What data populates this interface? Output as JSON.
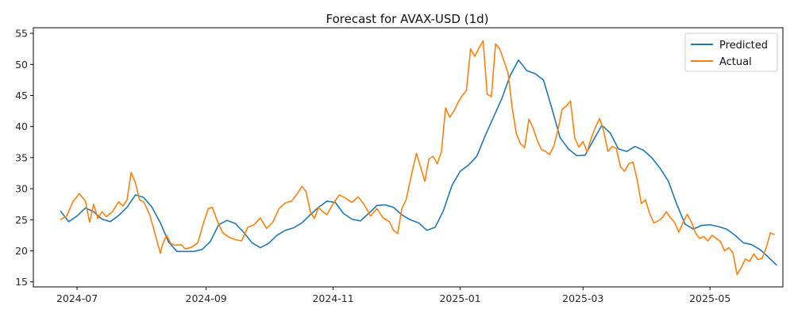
{
  "chart_data": {
    "type": "line",
    "title": "Forecast for AVAX-USD (1d)",
    "xlabel": "",
    "ylabel": "",
    "xlim": [
      "2024-06-10",
      "2025-06-05"
    ],
    "ylim": [
      14.2,
      55.9
    ],
    "grid": false,
    "legend_position": "top-right",
    "x_ticks": [
      {
        "date": "2024-07-01",
        "label": "2024-07"
      },
      {
        "date": "2024-09-01",
        "label": "2024-09"
      },
      {
        "date": "2024-11-01",
        "label": "2024-11"
      },
      {
        "date": "2025-01-01",
        "label": "2025-01"
      },
      {
        "date": "2025-03-01",
        "label": "2025-03"
      },
      {
        "date": "2025-05-01",
        "label": "2025-05"
      }
    ],
    "y_ticks": [
      15,
      20,
      25,
      30,
      35,
      40,
      45,
      50,
      55
    ],
    "series": [
      {
        "name": "Predicted",
        "color": "#1f77b4",
        "points": [
          [
            "2024-06-23",
            26.4
          ],
          [
            "2024-06-27",
            24.7
          ],
          [
            "2024-07-01",
            25.6
          ],
          [
            "2024-07-05",
            26.9
          ],
          [
            "2024-07-09",
            26.3
          ],
          [
            "2024-07-13",
            25.1
          ],
          [
            "2024-07-17",
            24.7
          ],
          [
            "2024-07-21",
            25.7
          ],
          [
            "2024-07-25",
            27.0
          ],
          [
            "2024-07-29",
            29.0
          ],
          [
            "2024-08-02",
            28.6
          ],
          [
            "2024-08-06",
            27.0
          ],
          [
            "2024-08-10",
            24.5
          ],
          [
            "2024-08-14",
            21.4
          ],
          [
            "2024-08-18",
            19.9
          ],
          [
            "2024-08-22",
            19.9
          ],
          [
            "2024-08-26",
            19.9
          ],
          [
            "2024-08-30",
            20.2
          ],
          [
            "2024-09-03",
            21.5
          ],
          [
            "2024-09-07",
            24.2
          ],
          [
            "2024-09-11",
            24.9
          ],
          [
            "2024-09-15",
            24.4
          ],
          [
            "2024-09-19",
            23.0
          ],
          [
            "2024-09-23",
            21.3
          ],
          [
            "2024-09-27",
            20.5
          ],
          [
            "2024-10-01",
            21.2
          ],
          [
            "2024-10-05",
            22.5
          ],
          [
            "2024-10-09",
            23.3
          ],
          [
            "2024-10-13",
            23.7
          ],
          [
            "2024-10-17",
            24.5
          ],
          [
            "2024-10-21",
            25.8
          ],
          [
            "2024-10-25",
            27.0
          ],
          [
            "2024-10-29",
            28.0
          ],
          [
            "2024-11-02",
            27.8
          ],
          [
            "2024-11-06",
            26.0
          ],
          [
            "2024-11-10",
            25.1
          ],
          [
            "2024-11-14",
            24.8
          ],
          [
            "2024-11-18",
            26.0
          ],
          [
            "2024-11-22",
            27.3
          ],
          [
            "2024-11-26",
            27.4
          ],
          [
            "2024-11-30",
            27.0
          ],
          [
            "2024-12-04",
            25.8
          ],
          [
            "2024-12-08",
            25.0
          ],
          [
            "2024-12-12",
            24.5
          ],
          [
            "2024-12-16",
            23.3
          ],
          [
            "2024-12-20",
            23.8
          ],
          [
            "2024-12-24",
            26.5
          ],
          [
            "2024-12-28",
            30.5
          ],
          [
            "2025-01-01",
            32.8
          ],
          [
            "2025-01-05",
            33.8
          ],
          [
            "2025-01-09",
            35.2
          ],
          [
            "2025-01-13",
            38.5
          ],
          [
            "2025-01-17",
            41.5
          ],
          [
            "2025-01-21",
            44.5
          ],
          [
            "2025-01-25",
            48.2
          ],
          [
            "2025-01-29",
            50.7
          ],
          [
            "2025-02-02",
            49.0
          ],
          [
            "2025-02-06",
            48.5
          ],
          [
            "2025-02-10",
            47.5
          ],
          [
            "2025-02-14",
            43.0
          ],
          [
            "2025-02-18",
            38.2
          ],
          [
            "2025-02-22",
            36.4
          ],
          [
            "2025-02-26",
            35.3
          ],
          [
            "2025-03-02",
            35.4
          ],
          [
            "2025-03-06",
            37.8
          ],
          [
            "2025-03-10",
            40.2
          ],
          [
            "2025-03-14",
            39.0
          ],
          [
            "2025-03-18",
            36.4
          ],
          [
            "2025-03-22",
            36.0
          ],
          [
            "2025-03-26",
            36.8
          ],
          [
            "2025-03-30",
            36.2
          ],
          [
            "2025-04-03",
            35.0
          ],
          [
            "2025-04-07",
            33.3
          ],
          [
            "2025-04-11",
            31.2
          ],
          [
            "2025-04-15",
            27.5
          ],
          [
            "2025-04-19",
            24.3
          ],
          [
            "2025-04-23",
            23.5
          ],
          [
            "2025-04-27",
            24.1
          ],
          [
            "2025-05-01",
            24.2
          ],
          [
            "2025-05-05",
            23.9
          ],
          [
            "2025-05-09",
            23.5
          ],
          [
            "2025-05-13",
            22.5
          ],
          [
            "2025-05-17",
            21.3
          ],
          [
            "2025-05-21",
            21.0
          ],
          [
            "2025-05-25",
            20.2
          ],
          [
            "2025-05-29",
            19.0
          ],
          [
            "2025-06-02",
            17.7
          ]
        ]
      },
      {
        "name": "Actual",
        "color": "#ff7f0e",
        "points": [
          [
            "2024-06-23",
            25.0
          ],
          [
            "2024-06-26",
            25.6
          ],
          [
            "2024-06-29",
            27.9
          ],
          [
            "2024-07-02",
            29.2
          ],
          [
            "2024-07-05",
            28.0
          ],
          [
            "2024-07-07",
            24.6
          ],
          [
            "2024-07-09",
            27.5
          ],
          [
            "2024-07-11",
            25.2
          ],
          [
            "2024-07-13",
            26.3
          ],
          [
            "2024-07-15",
            25.5
          ],
          [
            "2024-07-18",
            26.3
          ],
          [
            "2024-07-21",
            27.9
          ],
          [
            "2024-07-23",
            27.2
          ],
          [
            "2024-07-25",
            28.2
          ],
          [
            "2024-07-27",
            32.6
          ],
          [
            "2024-07-29",
            31.0
          ],
          [
            "2024-07-31",
            28.2
          ],
          [
            "2024-08-02",
            27.9
          ],
          [
            "2024-08-05",
            25.7
          ],
          [
            "2024-08-07",
            23.3
          ],
          [
            "2024-08-10",
            19.6
          ],
          [
            "2024-08-11",
            21.0
          ],
          [
            "2024-08-13",
            22.5
          ],
          [
            "2024-08-15",
            21.2
          ],
          [
            "2024-08-17",
            20.9
          ],
          [
            "2024-08-20",
            21.0
          ],
          [
            "2024-08-22",
            20.3
          ],
          [
            "2024-08-25",
            20.6
          ],
          [
            "2024-08-28",
            21.3
          ],
          [
            "2024-08-31",
            24.8
          ],
          [
            "2024-09-02",
            26.8
          ],
          [
            "2024-09-04",
            27.0
          ],
          [
            "2024-09-06",
            25.1
          ],
          [
            "2024-09-09",
            22.9
          ],
          [
            "2024-09-12",
            22.2
          ],
          [
            "2024-09-15",
            21.8
          ],
          [
            "2024-09-18",
            21.6
          ],
          [
            "2024-09-21",
            23.8
          ],
          [
            "2024-09-24",
            24.2
          ],
          [
            "2024-09-27",
            25.3
          ],
          [
            "2024-09-30",
            23.6
          ],
          [
            "2024-10-03",
            24.6
          ],
          [
            "2024-10-06",
            26.8
          ],
          [
            "2024-10-09",
            27.7
          ],
          [
            "2024-10-12",
            28.0
          ],
          [
            "2024-10-15",
            29.3
          ],
          [
            "2024-10-17",
            30.4
          ],
          [
            "2024-10-19",
            29.5
          ],
          [
            "2024-10-21",
            26.3
          ],
          [
            "2024-10-23",
            25.2
          ],
          [
            "2024-10-25",
            27.0
          ],
          [
            "2024-10-27",
            26.3
          ],
          [
            "2024-10-29",
            25.8
          ],
          [
            "2024-11-01",
            27.6
          ],
          [
            "2024-11-04",
            29.0
          ],
          [
            "2024-11-07",
            28.5
          ],
          [
            "2024-11-10",
            27.8
          ],
          [
            "2024-11-13",
            28.7
          ],
          [
            "2024-11-16",
            27.4
          ],
          [
            "2024-11-19",
            25.6
          ],
          [
            "2024-11-22",
            26.8
          ],
          [
            "2024-11-25",
            25.3
          ],
          [
            "2024-11-28",
            24.7
          ],
          [
            "2024-11-30",
            23.3
          ],
          [
            "2024-12-02",
            22.8
          ],
          [
            "2024-12-04",
            26.8
          ],
          [
            "2024-12-06",
            28.2
          ],
          [
            "2024-12-09",
            32.8
          ],
          [
            "2024-12-11",
            35.7
          ],
          [
            "2024-12-13",
            33.5
          ],
          [
            "2024-12-15",
            31.2
          ],
          [
            "2024-12-17",
            34.8
          ],
          [
            "2024-12-19",
            35.2
          ],
          [
            "2024-12-21",
            34.0
          ],
          [
            "2024-12-23",
            36.0
          ],
          [
            "2024-12-25",
            43.0
          ],
          [
            "2024-12-27",
            41.5
          ],
          [
            "2024-12-29",
            42.5
          ],
          [
            "2024-12-31",
            43.9
          ],
          [
            "2025-01-02",
            45.0
          ],
          [
            "2025-01-04",
            45.8
          ],
          [
            "2025-01-06",
            52.5
          ],
          [
            "2025-01-08",
            51.3
          ],
          [
            "2025-01-10",
            52.6
          ],
          [
            "2025-01-12",
            53.8
          ],
          [
            "2025-01-14",
            45.2
          ],
          [
            "2025-01-16",
            44.8
          ],
          [
            "2025-01-18",
            53.3
          ],
          [
            "2025-01-20",
            52.5
          ],
          [
            "2025-01-22",
            50.6
          ],
          [
            "2025-01-24",
            48.6
          ],
          [
            "2025-01-26",
            43.0
          ],
          [
            "2025-01-28",
            38.8
          ],
          [
            "2025-01-30",
            37.2
          ],
          [
            "2025-02-01",
            36.6
          ],
          [
            "2025-02-03",
            41.2
          ],
          [
            "2025-02-05",
            39.8
          ],
          [
            "2025-02-07",
            37.8
          ],
          [
            "2025-02-09",
            36.3
          ],
          [
            "2025-02-11",
            36.0
          ],
          [
            "2025-02-13",
            35.5
          ],
          [
            "2025-02-15",
            36.9
          ],
          [
            "2025-02-17",
            39.5
          ],
          [
            "2025-02-19",
            42.8
          ],
          [
            "2025-02-21",
            43.3
          ],
          [
            "2025-02-23",
            44.1
          ],
          [
            "2025-02-25",
            38.2
          ],
          [
            "2025-02-27",
            36.7
          ],
          [
            "2025-03-01",
            37.6
          ],
          [
            "2025-03-03",
            35.9
          ],
          [
            "2025-03-05",
            38.2
          ],
          [
            "2025-03-07",
            39.9
          ],
          [
            "2025-03-09",
            41.3
          ],
          [
            "2025-03-11",
            39.2
          ],
          [
            "2025-03-13",
            36.0
          ],
          [
            "2025-03-15",
            36.8
          ],
          [
            "2025-03-17",
            36.5
          ],
          [
            "2025-03-19",
            33.5
          ],
          [
            "2025-03-21",
            32.8
          ],
          [
            "2025-03-23",
            34.0
          ],
          [
            "2025-03-25",
            34.3
          ],
          [
            "2025-03-27",
            31.5
          ],
          [
            "2025-03-29",
            27.6
          ],
          [
            "2025-03-31",
            28.2
          ],
          [
            "2025-04-02",
            26.0
          ],
          [
            "2025-04-04",
            24.5
          ],
          [
            "2025-04-06",
            24.8
          ],
          [
            "2025-04-08",
            25.3
          ],
          [
            "2025-04-10",
            26.3
          ],
          [
            "2025-04-12",
            25.3
          ],
          [
            "2025-04-14",
            24.6
          ],
          [
            "2025-04-16",
            23.0
          ],
          [
            "2025-04-18",
            24.5
          ],
          [
            "2025-04-20",
            25.9
          ],
          [
            "2025-04-22",
            24.7
          ],
          [
            "2025-04-24",
            22.9
          ],
          [
            "2025-04-26",
            22.0
          ],
          [
            "2025-04-28",
            22.3
          ],
          [
            "2025-04-30",
            21.6
          ],
          [
            "2025-05-02",
            22.5
          ],
          [
            "2025-05-04",
            22.0
          ],
          [
            "2025-05-06",
            21.5
          ],
          [
            "2025-05-08",
            20.0
          ],
          [
            "2025-05-10",
            20.5
          ],
          [
            "2025-05-12",
            19.7
          ],
          [
            "2025-05-14",
            16.2
          ],
          [
            "2025-05-16",
            17.3
          ],
          [
            "2025-05-18",
            18.7
          ],
          [
            "2025-05-20",
            18.3
          ],
          [
            "2025-05-22",
            19.5
          ],
          [
            "2025-05-24",
            18.6
          ],
          [
            "2025-05-26",
            18.8
          ],
          [
            "2025-05-28",
            20.5
          ],
          [
            "2025-05-30",
            22.9
          ],
          [
            "2025-06-01",
            22.6
          ]
        ]
      }
    ]
  }
}
